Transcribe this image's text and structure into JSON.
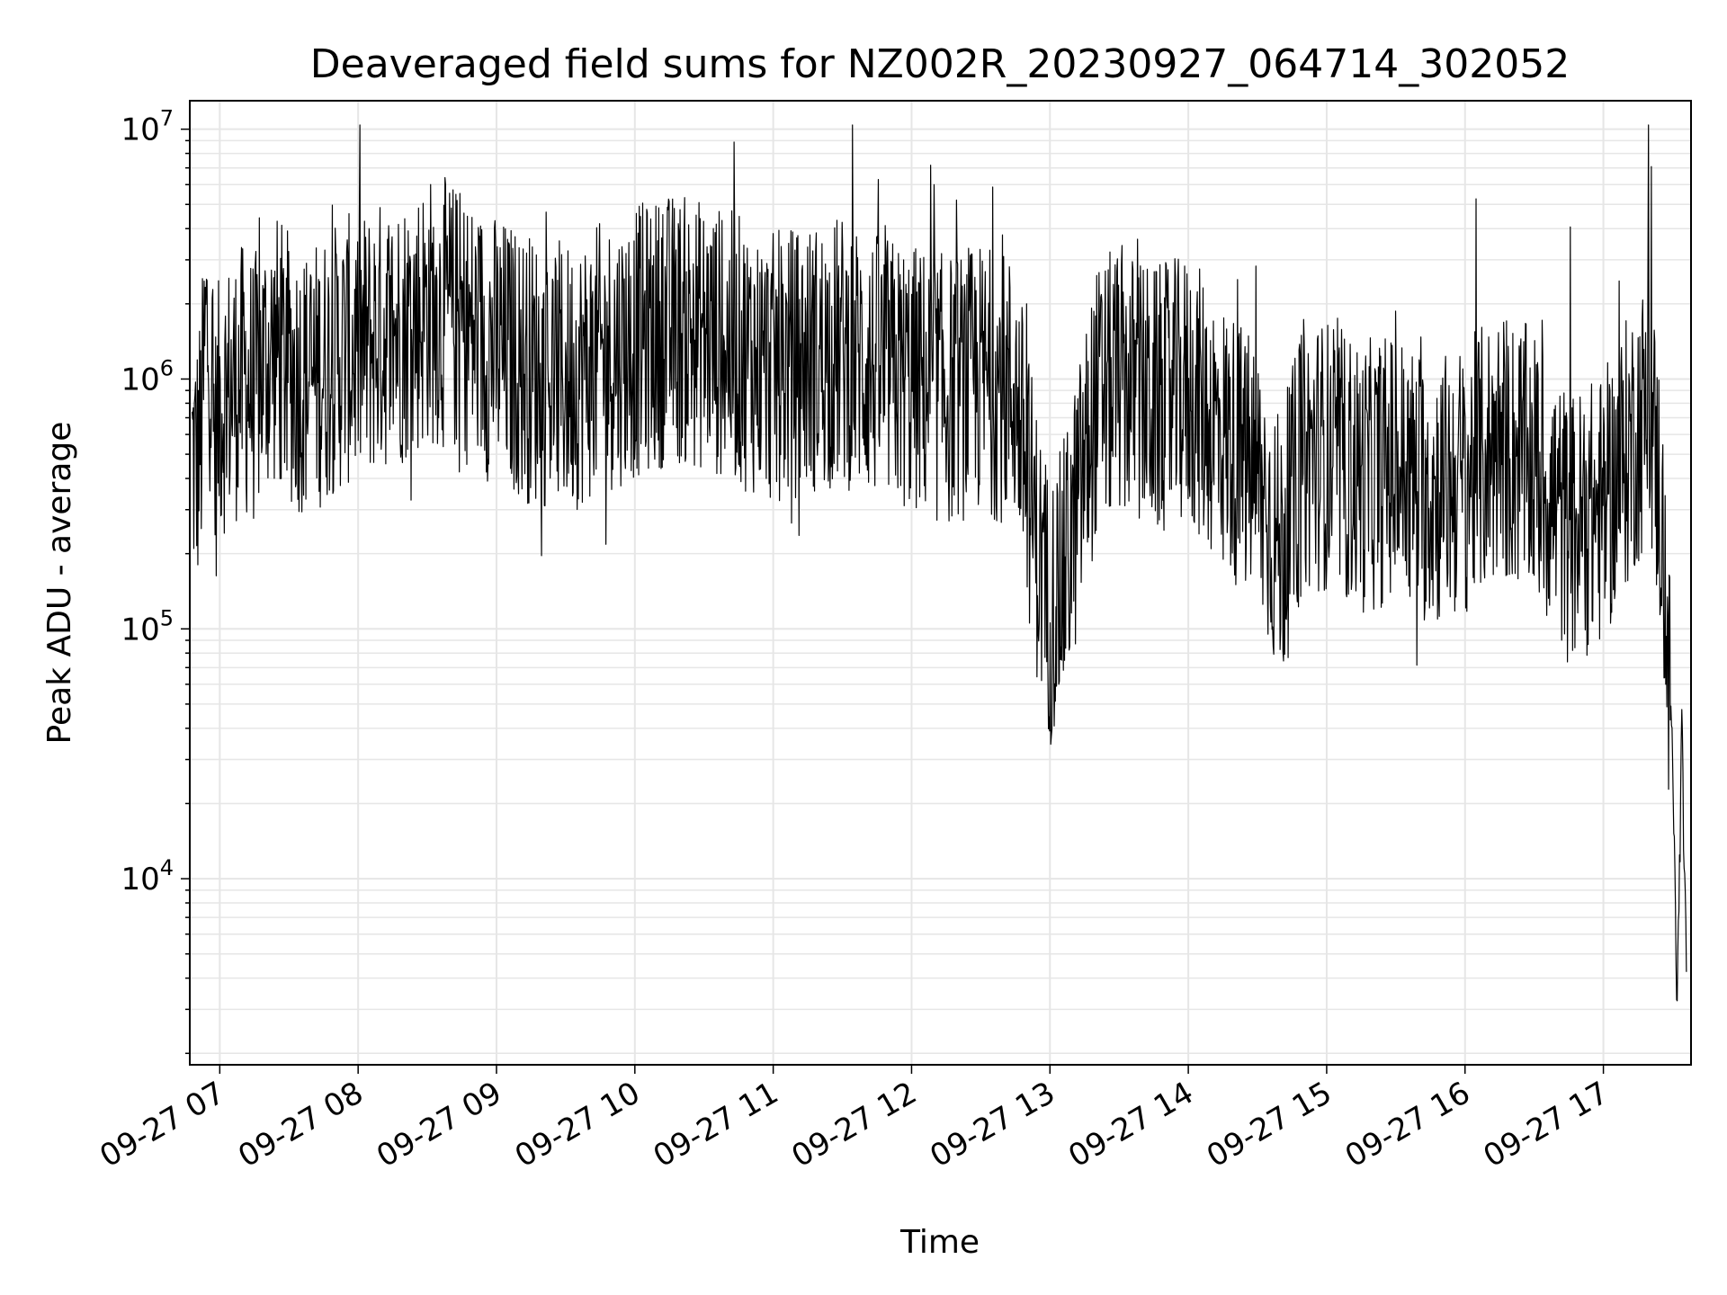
{
  "chart_data": {
    "type": "line",
    "title": "Deaveraged field sums for NZ002R_20230927_064714_302052",
    "xlabel": "Time",
    "ylabel": "Peak ADU - average",
    "yscale": "log",
    "ylim": [
      1800,
      13000000
    ],
    "xlim": [
      "2023-09-27 06:47",
      "2023-09-27 17:38"
    ],
    "grid": true,
    "line_color": "#000000",
    "grid_color": "#e6e6e6",
    "x_ticks": [
      "09-27 07",
      "09-27 08",
      "09-27 09",
      "09-27 10",
      "09-27 11",
      "09-27 12",
      "09-27 13",
      "09-27 14",
      "09-27 15",
      "09-27 16",
      "09-27 17"
    ],
    "x_tick_times": [
      "2023-09-27 07:00",
      "2023-09-27 08:00",
      "2023-09-27 09:00",
      "2023-09-27 10:00",
      "2023-09-27 11:00",
      "2023-09-27 12:00",
      "2023-09-27 13:00",
      "2023-09-27 14:00",
      "2023-09-27 15:00",
      "2023-09-27 16:00",
      "2023-09-27 17:00"
    ],
    "y_ticks": [
      {
        "base": "10",
        "exp": "4",
        "value": 10000
      },
      {
        "base": "10",
        "exp": "5",
        "value": 100000
      },
      {
        "base": "10",
        "exp": "6",
        "value": 1000000
      },
      {
        "base": "10",
        "exp": "7",
        "value": 10000000
      }
    ],
    "series": [
      {
        "values": [
          [
            "2023-09-27 06:48",
            500000
          ],
          [
            "2023-09-27 06:50",
            450000
          ],
          [
            "2023-09-27 06:52",
            600000
          ],
          [
            "2023-09-27 06:54",
            1600000
          ],
          [
            "2023-09-27 06:56",
            1200000
          ],
          [
            "2023-09-27 06:58",
            500000
          ],
          [
            "2023-09-27 07:00",
            800000
          ],
          [
            "2023-09-27 07:05",
            900000
          ],
          [
            "2023-09-27 07:10",
            1000000
          ],
          [
            "2023-09-27 07:15",
            900000
          ],
          [
            "2023-09-27 07:20",
            1200000
          ],
          [
            "2023-09-27 07:25",
            1300000
          ],
          [
            "2023-09-27 07:30",
            1100000
          ],
          [
            "2023-09-27 07:35",
            1000000
          ],
          [
            "2023-09-27 07:40",
            1000000
          ],
          [
            "2023-09-27 07:45",
            1100000
          ],
          [
            "2023-09-27 07:50",
            1200000
          ],
          [
            "2023-09-27 07:55",
            1300000
          ],
          [
            "2023-09-27 08:00",
            1300000
          ],
          [
            "2023-09-27 08:10",
            1500000
          ],
          [
            "2023-09-27 08:20",
            1600000
          ],
          [
            "2023-09-27 08:30",
            1900000
          ],
          [
            "2023-09-27 08:40",
            1800000
          ],
          [
            "2023-09-27 08:50",
            1500000
          ],
          [
            "2023-09-27 09:00",
            1300000
          ],
          [
            "2023-09-27 09:15",
            1100000
          ],
          [
            "2023-09-27 09:30",
            1000000
          ],
          [
            "2023-09-27 09:45",
            1200000
          ],
          [
            "2023-09-27 10:00",
            1400000
          ],
          [
            "2023-09-27 10:15",
            1600000
          ],
          [
            "2023-09-27 10:30",
            1500000
          ],
          [
            "2023-09-27 10:45",
            1300000
          ],
          [
            "2023-09-27 11:00",
            1100000
          ],
          [
            "2023-09-27 11:15",
            1200000
          ],
          [
            "2023-09-27 11:30",
            1300000
          ],
          [
            "2023-09-27 11:45",
            1100000
          ],
          [
            "2023-09-27 12:00",
            1000000
          ],
          [
            "2023-09-27 12:15",
            900000
          ],
          [
            "2023-09-27 12:30",
            1000000
          ],
          [
            "2023-09-27 12:45",
            900000
          ],
          [
            "2023-09-27 12:55",
            200000
          ],
          [
            "2023-09-27 13:00",
            120000
          ],
          [
            "2023-09-27 13:05",
            150000
          ],
          [
            "2023-09-27 13:10",
            250000
          ],
          [
            "2023-09-27 13:20",
            800000
          ],
          [
            "2023-09-27 13:30",
            1000000
          ],
          [
            "2023-09-27 13:45",
            800000
          ],
          [
            "2023-09-27 14:00",
            900000
          ],
          [
            "2023-09-27 14:15",
            600000
          ],
          [
            "2023-09-27 14:30",
            400000
          ],
          [
            "2023-09-27 14:40",
            200000
          ],
          [
            "2023-09-27 14:50",
            500000
          ],
          [
            "2023-09-27 15:00",
            500000
          ],
          [
            "2023-09-27 15:15",
            400000
          ],
          [
            "2023-09-27 15:30",
            450000
          ],
          [
            "2023-09-27 15:45",
            350000
          ],
          [
            "2023-09-27 16:00",
            400000
          ],
          [
            "2023-09-27 16:15",
            550000
          ],
          [
            "2023-09-27 16:30",
            450000
          ],
          [
            "2023-09-27 16:45",
            250000
          ],
          [
            "2023-09-27 17:00",
            300000
          ],
          [
            "2023-09-27 17:10",
            500000
          ],
          [
            "2023-09-27 17:20",
            800000
          ],
          [
            "2023-09-27 17:25",
            300000
          ],
          [
            "2023-09-27 17:30",
            30000
          ],
          [
            "2023-09-27 17:32",
            3000
          ],
          [
            "2023-09-27 17:34",
            40000
          ],
          [
            "2023-09-27 17:36",
            4000
          ]
        ]
      }
    ]
  }
}
